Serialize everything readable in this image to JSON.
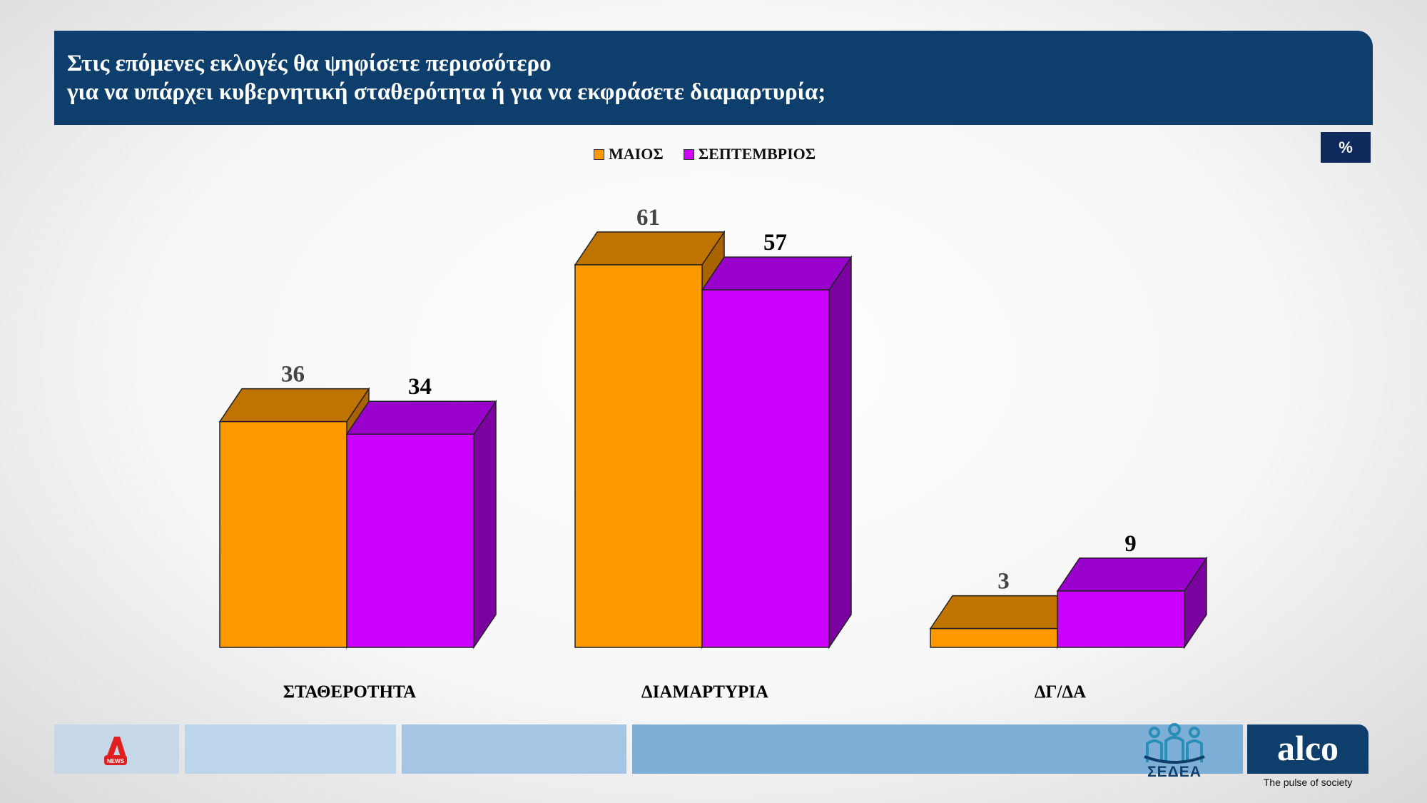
{
  "header": {
    "title_line1": "Στις επόμενες εκλογές θα ψηφίσετε περισσότερο",
    "title_line2": "για να υπάρχει κυβερνητική σταθερότητα ή για να εκφράσετε διαμαρτυρία;",
    "unit_badge": "%"
  },
  "legend": {
    "items": [
      {
        "label": "ΜΑΙΟΣ",
        "color": "#FF9900"
      },
      {
        "label": "ΣΕΠΤΕΜΒΡΙΟΣ",
        "color": "#CC00FF"
      }
    ]
  },
  "chart_data": {
    "type": "bar",
    "style": "3d-clustered",
    "categories": [
      "ΣΤΑΘΕΡΟΤΗΤΑ",
      "ΔΙΑΜΑΡΤΥΡΙΑ",
      "ΔΓ/ΔΑ"
    ],
    "series": [
      {
        "name": "ΜΑΙΟΣ",
        "values": [
          36,
          61,
          3
        ],
        "color": "#FF9900",
        "top_color": "#BF7300",
        "side_color": "#A86400",
        "label_color": "#444444"
      },
      {
        "name": "ΣΕΠΤΕΜΒΡΙΟΣ",
        "values": [
          34,
          57,
          9
        ],
        "color": "#CC00FF",
        "top_color": "#9900CC",
        "side_color": "#7A00A0",
        "label_color": "#000000"
      }
    ],
    "legend_position": "top-center",
    "grid": false,
    "ylim": [
      0,
      61
    ]
  },
  "footer": {
    "brand_colors": [
      "#C6D8E8",
      "#BDD5EA",
      "#A4C6E4",
      "#7DAFD6"
    ],
    "alpha_logo_text": "NEWS",
    "sedea_text": "ΣΕΔΕΑ",
    "alco_text": "alco",
    "alco_tagline": "The pulse of society"
  }
}
